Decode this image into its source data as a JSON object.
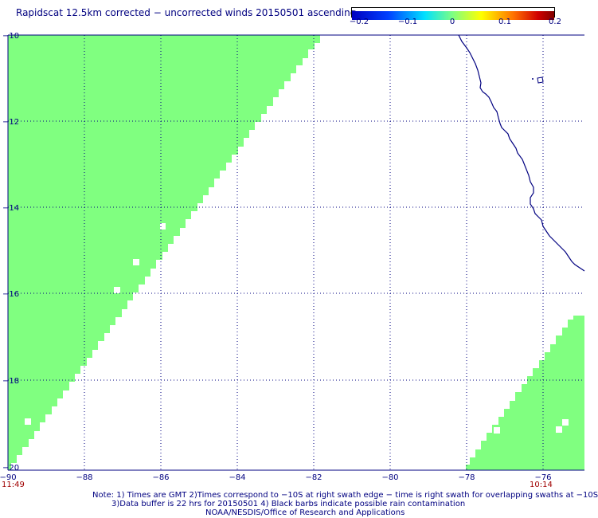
{
  "title": "Rapidscat 12.5km corrected − uncorrected winds 20150501 ascending",
  "colorbar": {
    "ticks": [
      "−0.2",
      "−0.1",
      "0",
      "0.1",
      "0.2"
    ],
    "colors": [
      "#0000c8",
      "#0050ff",
      "#00e6ff",
      "#80ff80",
      "#ffff00",
      "#ff8000",
      "#c80000",
      "#800000"
    ]
  },
  "axes": {
    "lon_labels": [
      "−90",
      "−88",
      "−86",
      "−84",
      "−82",
      "−80",
      "−78",
      "−76"
    ],
    "lat_labels": [
      "−10",
      "−12",
      "−14",
      "−16",
      "−18",
      "−20"
    ],
    "lon_range": [
      -90,
      -74.9
    ],
    "lat_range": [
      -20,
      -10
    ]
  },
  "swaths": [
    {
      "name": "swath-west",
      "time": "11:49",
      "value": 0.0,
      "color": "#80ff80"
    },
    {
      "name": "swath-east",
      "time": "10:14",
      "value": 0.0,
      "color": "#80ff80"
    }
  ],
  "coastline_color": "#000080",
  "grid_color": "#000080",
  "notes": [
    "Note: 1) Times are GMT 2)Times correspond to −10S at right swath edge − time is right swath for overlapping swaths at −10S",
    "3)Data buffer is 22 hrs for 20150501 4) Black barbs indicate possible rain contamination",
    "NOAA/NESDIS/Office of Research and Applications"
  ]
}
